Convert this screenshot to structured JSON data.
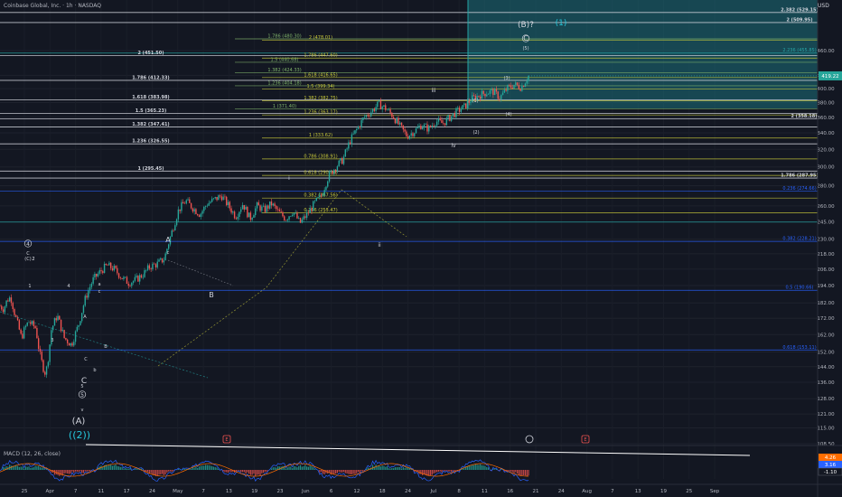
{
  "header": {
    "title": "Coinbase Global, Inc. · 1h · NASDAQ",
    "currency": "USD"
  },
  "macd_label": "MACD (12, 26, close)",
  "colors": {
    "background": "#131722",
    "up": "#26a69a",
    "down": "#ef5350",
    "white_level": "#d1d4dc",
    "yellow_level": "#c9c93a",
    "blue_level": "#2962ff",
    "teal_level": "#26a6a6",
    "teal_zone": "#1b7a85"
  },
  "chart_data": [
    {
      "type": "candlestick",
      "title": "Coinbase Global, Inc. · 1h · NASDAQ",
      "ylim": [
        100,
        540
      ],
      "y_axis_ticks": [
        "108.50",
        "115.00",
        "121.00",
        "128.00",
        "136.00",
        "144.00",
        "152.00",
        "162.00",
        "172.00",
        "182.00",
        "194.00",
        "206.00",
        "218.00",
        "230.00",
        "245.00",
        "260.00",
        "280.00",
        "300.00",
        "320.00",
        "340.00",
        "360.00",
        "380.00",
        "400.00",
        "420.00",
        "460.00"
      ],
      "x_axis_ticks": [
        "25",
        "Apr",
        "7",
        "11",
        "17",
        "24",
        "May",
        "7",
        "13",
        "19",
        "23",
        "Jun",
        "6",
        "12",
        "18",
        "24",
        "Jul",
        "8",
        "11",
        "16",
        "21",
        "24",
        "Aug",
        "7",
        "13",
        "19",
        "25",
        "Sep"
      ],
      "last_price": "419.22",
      "price_path": [
        [
          0,
          180
        ],
        [
          0.5,
          178
        ],
        [
          1,
          184
        ],
        [
          1.5,
          186
        ],
        [
          2,
          176
        ],
        [
          3,
          160
        ],
        [
          3.5,
          166
        ],
        [
          4,
          170
        ],
        [
          5,
          166
        ],
        [
          5.5,
          152
        ],
        [
          6,
          144
        ],
        [
          6.4,
          140
        ],
        [
          6.8,
          150
        ],
        [
          7.2,
          165
        ],
        [
          8,
          174
        ],
        [
          9,
          160
        ],
        [
          10,
          156
        ],
        [
          11,
          168
        ],
        [
          12,
          186
        ],
        [
          13,
          198
        ],
        [
          14,
          204
        ],
        [
          15,
          209
        ],
        [
          16,
          206
        ],
        [
          17,
          200
        ],
        [
          18,
          196
        ],
        [
          19,
          198
        ],
        [
          20,
          202
        ],
        [
          21,
          208
        ],
        [
          22,
          210
        ],
        [
          23,
          214
        ],
        [
          24,
          235
        ],
        [
          25,
          256
        ],
        [
          26,
          265
        ],
        [
          27,
          258
        ],
        [
          28,
          252
        ],
        [
          29,
          262
        ],
        [
          30,
          266
        ],
        [
          31,
          270
        ],
        [
          32,
          260
        ],
        [
          33,
          250
        ],
        [
          34,
          262
        ],
        [
          35,
          248
        ],
        [
          36,
          260
        ],
        [
          37,
          256
        ],
        [
          38,
          262
        ],
        [
          39,
          254
        ],
        [
          40,
          248
        ],
        [
          41,
          255
        ],
        [
          42,
          244
        ],
        [
          43,
          252
        ],
        [
          44,
          262
        ],
        [
          45,
          270
        ],
        [
          46,
          290
        ],
        [
          47,
          300
        ],
        [
          48,
          308
        ],
        [
          49,
          330
        ],
        [
          50,
          345
        ],
        [
          51,
          360
        ],
        [
          52,
          368
        ],
        [
          53,
          378
        ],
        [
          54,
          372
        ],
        [
          55,
          362
        ],
        [
          56,
          348
        ],
        [
          57,
          336
        ],
        [
          58,
          342
        ],
        [
          59,
          350
        ],
        [
          60,
          345
        ],
        [
          61,
          355
        ],
        [
          62,
          352
        ],
        [
          63,
          360
        ],
        [
          64,
          368
        ],
        [
          65,
          374
        ],
        [
          66,
          385
        ],
        [
          67,
          390
        ],
        [
          68,
          394
        ],
        [
          69,
          396
        ],
        [
          70,
          387
        ],
        [
          71,
          400
        ],
        [
          72,
          406
        ],
        [
          73,
          402
        ],
        [
          74,
          419
        ]
      ],
      "horizontal_levels": [
        {
          "price": 529.15,
          "label": "2.382 (529.15)",
          "color": "white"
        },
        {
          "price": 509.95,
          "label": "2 (509.95)",
          "color": "white"
        },
        {
          "price": 480.3,
          "label": "1.786 (480.30)",
          "color": "green"
        },
        {
          "price": 478.01,
          "label": "2 (478.01)",
          "color": "yellow"
        },
        {
          "price": 455.85,
          "label": "2.236 (455.85)",
          "color": "teal"
        },
        {
          "price": 451.5,
          "label": "2 (451.50)",
          "color": "white"
        },
        {
          "price": 447.6,
          "label": "1.786 (447.60)",
          "color": "yellow"
        },
        {
          "price": 440.68,
          "label": "1.5 (440.68)",
          "color": "green"
        },
        {
          "price": 424.33,
          "label": "1.382 (424.33)",
          "color": "green"
        },
        {
          "price": 416.65,
          "label": "1.618 (416.65)",
          "color": "yellow"
        },
        {
          "price": 412.33,
          "label": "1.786 (412.33)",
          "color": "white"
        },
        {
          "price": 404.18,
          "label": "1.236 (404.18)",
          "color": "green"
        },
        {
          "price": 399.34,
          "label": "1.5 (399.34)",
          "color": "yellow"
        },
        {
          "price": 383.98,
          "label": "1.618 (383.98)",
          "color": "white"
        },
        {
          "price": 382.75,
          "label": "1.382 (382.75)",
          "color": "yellow"
        },
        {
          "price": 371.4,
          "label": "1 (371.40)",
          "color": "green"
        },
        {
          "price": 365.23,
          "label": "1.5 (365.23)",
          "color": "white"
        },
        {
          "price": 363.17,
          "label": "1.236 (363.17)",
          "color": "yellow"
        },
        {
          "price": 358.18,
          "label": "2 (358.18)",
          "color": "white"
        },
        {
          "price": 347.41,
          "label": "1.382 (347.41)",
          "color": "white"
        },
        {
          "price": 333.62,
          "label": "1 (333.62)",
          "color": "yellow"
        },
        {
          "price": 326.55,
          "label": "1.236 (326.55)",
          "color": "white"
        },
        {
          "price": 308.91,
          "label": "0.786 (308.91)",
          "color": "yellow"
        },
        {
          "price": 295.45,
          "label": "1 (295.45)",
          "color": "white"
        },
        {
          "price": 290.8,
          "label": "0.618 (290.80)",
          "color": "yellow"
        },
        {
          "price": 287.95,
          "label": "1.786 (287.95)",
          "color": "white"
        },
        {
          "price": 274.66,
          "label": "0.236 (274.66)",
          "color": "blue"
        },
        {
          "price": 267.56,
          "label": "0.382 (267.56)",
          "color": "yellow"
        },
        {
          "price": 253.47,
          "label": "0.236 (253.47)",
          "color": "yellow"
        },
        {
          "price": 245.0,
          "label": "",
          "color": "teal"
        },
        {
          "price": 228.21,
          "label": "0.382 (228.21)",
          "color": "blue"
        },
        {
          "price": 190.66,
          "label": "0.5 (190.66)",
          "color": "blue"
        },
        {
          "price": 153.11,
          "label": "0.618 (153.11)",
          "color": "blue"
        }
      ],
      "wave_labels": [
        "(B)?",
        "(1)",
        "C",
        "(5)",
        "(3)",
        "(4)",
        "(1)",
        "(2)",
        "iii",
        "iv",
        "ii",
        "i",
        "A",
        "B",
        "C",
        "a",
        "c",
        "b",
        "c",
        "A",
        "B",
        "C",
        "1",
        "2",
        "3",
        "4",
        "5",
        "(C)",
        "4",
        "5",
        "v",
        "(A)",
        "((2))",
        "C",
        "2"
      ]
    },
    {
      "type": "line",
      "title": "MACD (12, 26, close)",
      "series": [
        {
          "name": "",
          "values": [
            4.26
          ]
        },
        {
          "name": "",
          "values": [
            3.16
          ]
        },
        {
          "name": "",
          "values": [
            -1.1
          ]
        }
      ],
      "value_labels": [
        "4.26",
        "3.16",
        "-1.10"
      ]
    }
  ]
}
